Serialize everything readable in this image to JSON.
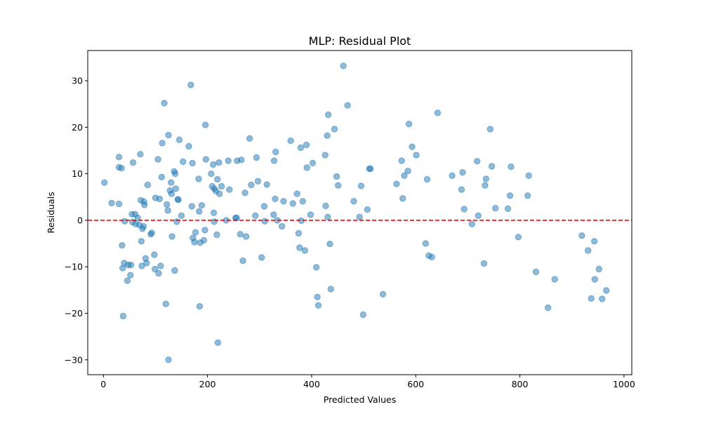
{
  "chart_data": {
    "type": "scatter",
    "title": "MLP: Residual Plot",
    "xlabel": "Predicted Values",
    "ylabel": "Residuals",
    "xlim": [
      -30,
      1015
    ],
    "ylim": [
      -33.2,
      36.5
    ],
    "xticks": [
      0,
      200,
      400,
      600,
      800,
      1000
    ],
    "yticks": [
      -30,
      -20,
      -10,
      0,
      10,
      20,
      30
    ],
    "xtick_labels": [
      "0",
      "200",
      "400",
      "600",
      "800",
      "1000"
    ],
    "ytick_labels": [
      "−30",
      "−20",
      "−10",
      "0",
      "10",
      "20",
      "30"
    ],
    "grid": false,
    "reference_line": {
      "y": 0,
      "style": "dashed",
      "color": "#ff0000"
    },
    "point_color": "#1f77b4",
    "point_alpha": 0.5,
    "points": [
      [
        2,
        8.1
      ],
      [
        16,
        3.7
      ],
      [
        30,
        3.5
      ],
      [
        30,
        13.6
      ],
      [
        30,
        11.4
      ],
      [
        35,
        11.2
      ],
      [
        36,
        -5.4
      ],
      [
        37,
        -10.3
      ],
      [
        38,
        -20.6
      ],
      [
        40,
        -9.2
      ],
      [
        41,
        -0.2
      ],
      [
        46,
        -13.0
      ],
      [
        48,
        -9.6
      ],
      [
        52,
        -11.8
      ],
      [
        53,
        -9.6
      ],
      [
        55,
        1.3
      ],
      [
        56,
        -0.4
      ],
      [
        57,
        12.4
      ],
      [
        61,
        1.3
      ],
      [
        62,
        -0.8
      ],
      [
        66,
        0.5
      ],
      [
        69,
        -1.0
      ],
      [
        71,
        14.2
      ],
      [
        72,
        4.3
      ],
      [
        73,
        -4.5
      ],
      [
        74,
        -9.8
      ],
      [
        75,
        -1.8
      ],
      [
        77,
        -1.3
      ],
      [
        78,
        4.0
      ],
      [
        79,
        3.3
      ],
      [
        81,
        -8.2
      ],
      [
        83,
        -9.2
      ],
      [
        85,
        7.6
      ],
      [
        91,
        -3.0
      ],
      [
        93,
        -2.7
      ],
      [
        98,
        -7.4
      ],
      [
        99,
        -10.5
      ],
      [
        100,
        4.8
      ],
      [
        105,
        13.1
      ],
      [
        106,
        -11.4
      ],
      [
        108,
        4.6
      ],
      [
        110,
        -9.8
      ],
      [
        112,
        9.3
      ],
      [
        113,
        16.6
      ],
      [
        117,
        25.2
      ],
      [
        120,
        -18.0
      ],
      [
        122,
        3.4
      ],
      [
        124,
        2.1
      ],
      [
        125,
        18.3
      ],
      [
        125,
        -30.0
      ],
      [
        128,
        6.4
      ],
      [
        130,
        8.1
      ],
      [
        131,
        5.7
      ],
      [
        132,
        -3.5
      ],
      [
        136,
        10.5
      ],
      [
        137,
        -10.8
      ],
      [
        138,
        10.0
      ],
      [
        139,
        6.8
      ],
      [
        141,
        -0.3
      ],
      [
        143,
        4.5
      ],
      [
        144,
        4.4
      ],
      [
        146,
        17.3
      ],
      [
        150,
        1.0
      ],
      [
        153,
        12.6
      ],
      [
        164,
        15.9
      ],
      [
        168,
        29.1
      ],
      [
        170,
        3.0
      ],
      [
        171,
        12.3
      ],
      [
        172,
        -3.8
      ],
      [
        175,
        -4.7
      ],
      [
        177,
        -2.6
      ],
      [
        183,
        8.9
      ],
      [
        184,
        1.9
      ],
      [
        185,
        -18.5
      ],
      [
        186,
        -4.8
      ],
      [
        189,
        3.2
      ],
      [
        193,
        -4.3
      ],
      [
        195,
        -2.1
      ],
      [
        196,
        20.5
      ],
      [
        197,
        13.1
      ],
      [
        207,
        10.0
      ],
      [
        209,
        7.3
      ],
      [
        211,
        12.0
      ],
      [
        212,
        1.6
      ],
      [
        213,
        -0.3
      ],
      [
        213,
        6.8
      ],
      [
        216,
        6.3
      ],
      [
        218,
        -3.1
      ],
      [
        219,
        8.8
      ],
      [
        220,
        -26.3
      ],
      [
        222,
        12.4
      ],
      [
        223,
        5.7
      ],
      [
        227,
        7.3
      ],
      [
        236,
        0.0
      ],
      [
        240,
        12.8
      ],
      [
        242,
        6.6
      ],
      [
        254,
        0.5
      ],
      [
        256,
        0.5
      ],
      [
        257,
        12.8
      ],
      [
        263,
        -3.0
      ],
      [
        265,
        13.0
      ],
      [
        268,
        -8.7
      ],
      [
        272,
        5.9
      ],
      [
        274,
        -3.5
      ],
      [
        281,
        17.6
      ],
      [
        284,
        7.6
      ],
      [
        292,
        1.0
      ],
      [
        294,
        13.5
      ],
      [
        297,
        8.4
      ],
      [
        304,
        -8.0
      ],
      [
        309,
        3.0
      ],
      [
        310,
        -0.2
      ],
      [
        314,
        7.7
      ],
      [
        327,
        1.2
      ],
      [
        328,
        12.8
      ],
      [
        330,
        4.6
      ],
      [
        331,
        14.7
      ],
      [
        334,
        0.0
      ],
      [
        343,
        -1.3
      ],
      [
        346,
        4.1
      ],
      [
        360,
        17.1
      ],
      [
        364,
        3.6
      ],
      [
        372,
        5.7
      ],
      [
        375,
        -2.8
      ],
      [
        377,
        -5.9
      ],
      [
        379,
        15.6
      ],
      [
        380,
        -0.1
      ],
      [
        383,
        4.1
      ],
      [
        387,
        -6.5
      ],
      [
        390,
        16.2
      ],
      [
        391,
        11.3
      ],
      [
        398,
        1.2
      ],
      [
        402,
        12.3
      ],
      [
        409,
        -10.1
      ],
      [
        411,
        -16.5
      ],
      [
        413,
        -18.3
      ],
      [
        426,
        14.0
      ],
      [
        427,
        3.1
      ],
      [
        430,
        18.2
      ],
      [
        431,
        0.7
      ],
      [
        432,
        22.7
      ],
      [
        435,
        -5.1
      ],
      [
        437,
        -14.8
      ],
      [
        444,
        19.6
      ],
      [
        448,
        9.4
      ],
      [
        451,
        7.5
      ],
      [
        461,
        33.2
      ],
      [
        469,
        24.7
      ],
      [
        481,
        4.1
      ],
      [
        492,
        0.7
      ],
      [
        495,
        7.4
      ],
      [
        499,
        -20.3
      ],
      [
        507,
        2.3
      ],
      [
        511,
        11.1
      ],
      [
        513,
        11.1
      ],
      [
        537,
        -15.9
      ],
      [
        563,
        7.8
      ],
      [
        573,
        12.8
      ],
      [
        575,
        4.7
      ],
      [
        578,
        9.6
      ],
      [
        585,
        10.6
      ],
      [
        587,
        20.7
      ],
      [
        593,
        15.8
      ],
      [
        601,
        14.0
      ],
      [
        619,
        -5.0
      ],
      [
        622,
        8.8
      ],
      [
        625,
        -7.6
      ],
      [
        631,
        -7.9
      ],
      [
        642,
        23.1
      ],
      [
        670,
        9.6
      ],
      [
        688,
        6.6
      ],
      [
        690,
        10.3
      ],
      [
        693,
        2.4
      ],
      [
        708,
        -0.8
      ],
      [
        718,
        12.7
      ],
      [
        720,
        1.0
      ],
      [
        731,
        -9.3
      ],
      [
        733,
        7.5
      ],
      [
        735,
        8.9
      ],
      [
        743,
        19.6
      ],
      [
        746,
        11.6
      ],
      [
        753,
        2.6
      ],
      [
        777,
        2.5
      ],
      [
        781,
        5.3
      ],
      [
        783,
        11.5
      ],
      [
        797,
        -3.6
      ],
      [
        815,
        5.3
      ],
      [
        817,
        9.6
      ],
      [
        831,
        -11.1
      ],
      [
        854,
        -18.8
      ],
      [
        867,
        -12.7
      ],
      [
        919,
        -3.3
      ],
      [
        931,
        -6.5
      ],
      [
        937,
        -16.8
      ],
      [
        943,
        -4.5
      ],
      [
        944,
        -12.7
      ],
      [
        952,
        -10.5
      ],
      [
        958,
        -16.9
      ],
      [
        966,
        -15.1
      ]
    ]
  }
}
